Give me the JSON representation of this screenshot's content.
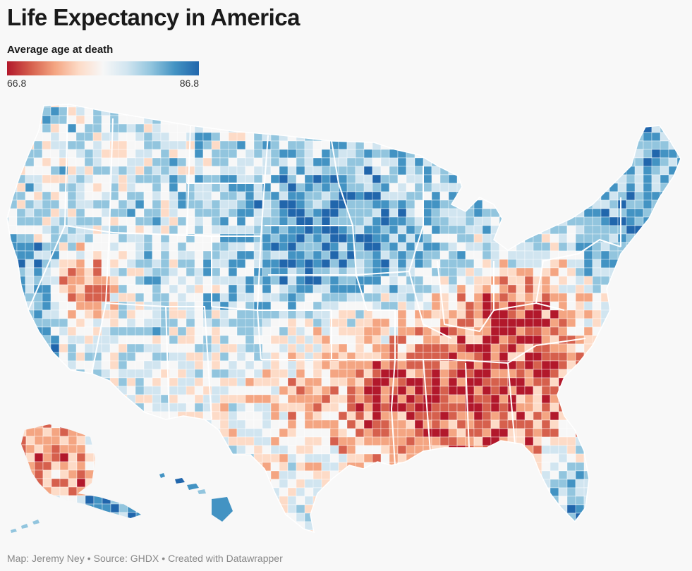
{
  "header": {
    "title": "Life Expectancy in America"
  },
  "legend": {
    "title": "Average age at death",
    "min_label": "66.8",
    "max_label": "86.8",
    "min_value": 66.8,
    "max_value": 86.8,
    "colors": [
      "#b2182b",
      "#d6604d",
      "#f4a582",
      "#fddbc7",
      "#f7f7f7",
      "#d1e5f0",
      "#92c5de",
      "#4393c3",
      "#2166ac"
    ]
  },
  "footer": {
    "map_credit": "Map: Jeremy Ney",
    "source": "Source: GHDX",
    "tool": "Created with Datawrapper"
  }
}
